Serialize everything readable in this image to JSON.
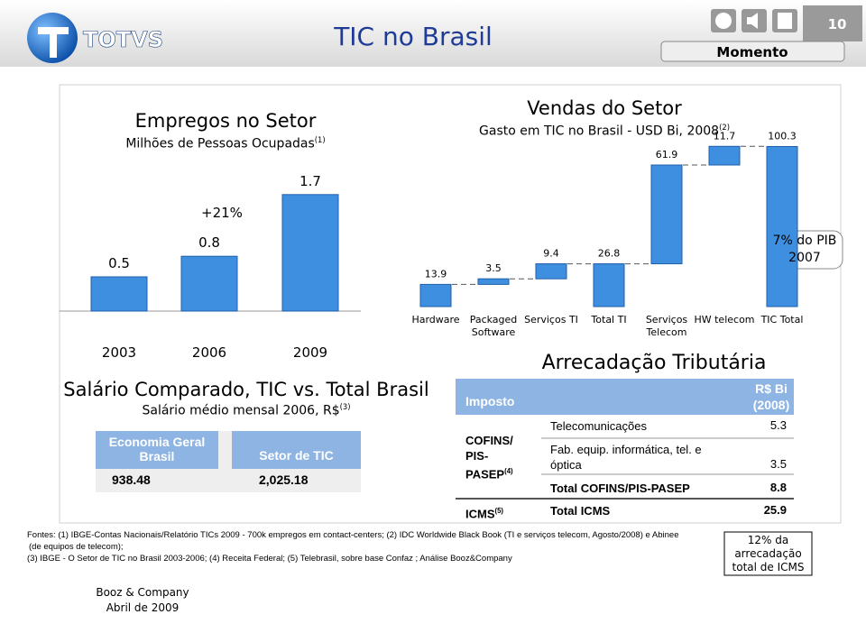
{
  "header": {
    "logo_text": "TOTVS",
    "title": "TIC no Brasil",
    "page_number": "10",
    "tab": "Momento"
  },
  "employment_chart": {
    "type": "bar",
    "title": "Empregos no Setor",
    "subtitle": "Milhões de Pessoas Ocupadas",
    "subtitle_note": "(1)",
    "categories": [
      "2003",
      "2006",
      "2009"
    ],
    "values": [
      0.5,
      0.8,
      1.7
    ],
    "color": "#3f8fe0",
    "annotation": "+21%"
  },
  "sales_chart": {
    "type": "waterfall",
    "title": "Vendas do Setor",
    "subtitle": "Gasto em TIC no Brasil - USD Bi, 2008",
    "subtitle_note": "(2)",
    "categories": [
      "Hardware",
      "Packaged Software",
      "Serviços TI",
      "Total TI",
      "Serviços Telecom",
      "HW telecom",
      "TIC Total"
    ],
    "values": [
      13.9,
      3.5,
      9.4,
      26.8,
      61.9,
      11.7,
      100.3
    ],
    "totals": [
      false,
      false,
      false,
      true,
      false,
      false,
      true
    ],
    "color": "#3f8fe0",
    "annotation": "7% do PIB 2007"
  },
  "salary": {
    "title": "Salário Comparado, TIC vs. Total Brasil",
    "subtitle": "Salário médio mensal 2006, R$",
    "subtitle_note": "(3)",
    "headers": [
      "Economia Geral Brasil",
      "Setor de TIC"
    ],
    "values": [
      "938.48",
      "2,025.18"
    ]
  },
  "tax": {
    "title": "Arrecadação Tributária",
    "header": [
      "Imposto",
      "R$ Bi (2008)"
    ],
    "groups": [
      {
        "name": "COFINS/ PIS-PASEP",
        "note": "(4)",
        "rows": [
          [
            "Telecomunicações",
            "5.3"
          ],
          [
            "Fab. equip. informática, tel. e óptica",
            "3.5"
          ],
          [
            "Total COFINS/PIS-PASEP",
            "8.8"
          ]
        ]
      },
      {
        "name": "ICMS",
        "note": "(5)",
        "rows": [
          [
            "Total ICMS",
            "25.9"
          ]
        ]
      }
    ]
  },
  "footnotes": [
    "Fontes: (1) IBGE-Contas Nacionais/Relatório TICs 2009 - 700k empregos em contact-centers; (2) IDC Worldwide Black Book (TI e serviços telecom, Agosto/2008) e Abinee",
    "(de equipos de telecom);",
    "(3) IBGE - O Setor de TIC no Brasil 2003-2006; (4) Receita Federal; (5) Telebrasil, sobre base Confaz ; Análise Booz&Company"
  ],
  "callout": "12% da arrecadação total de ICMS",
  "footer": [
    "Booz & Company",
    "Abril de 2009"
  ]
}
